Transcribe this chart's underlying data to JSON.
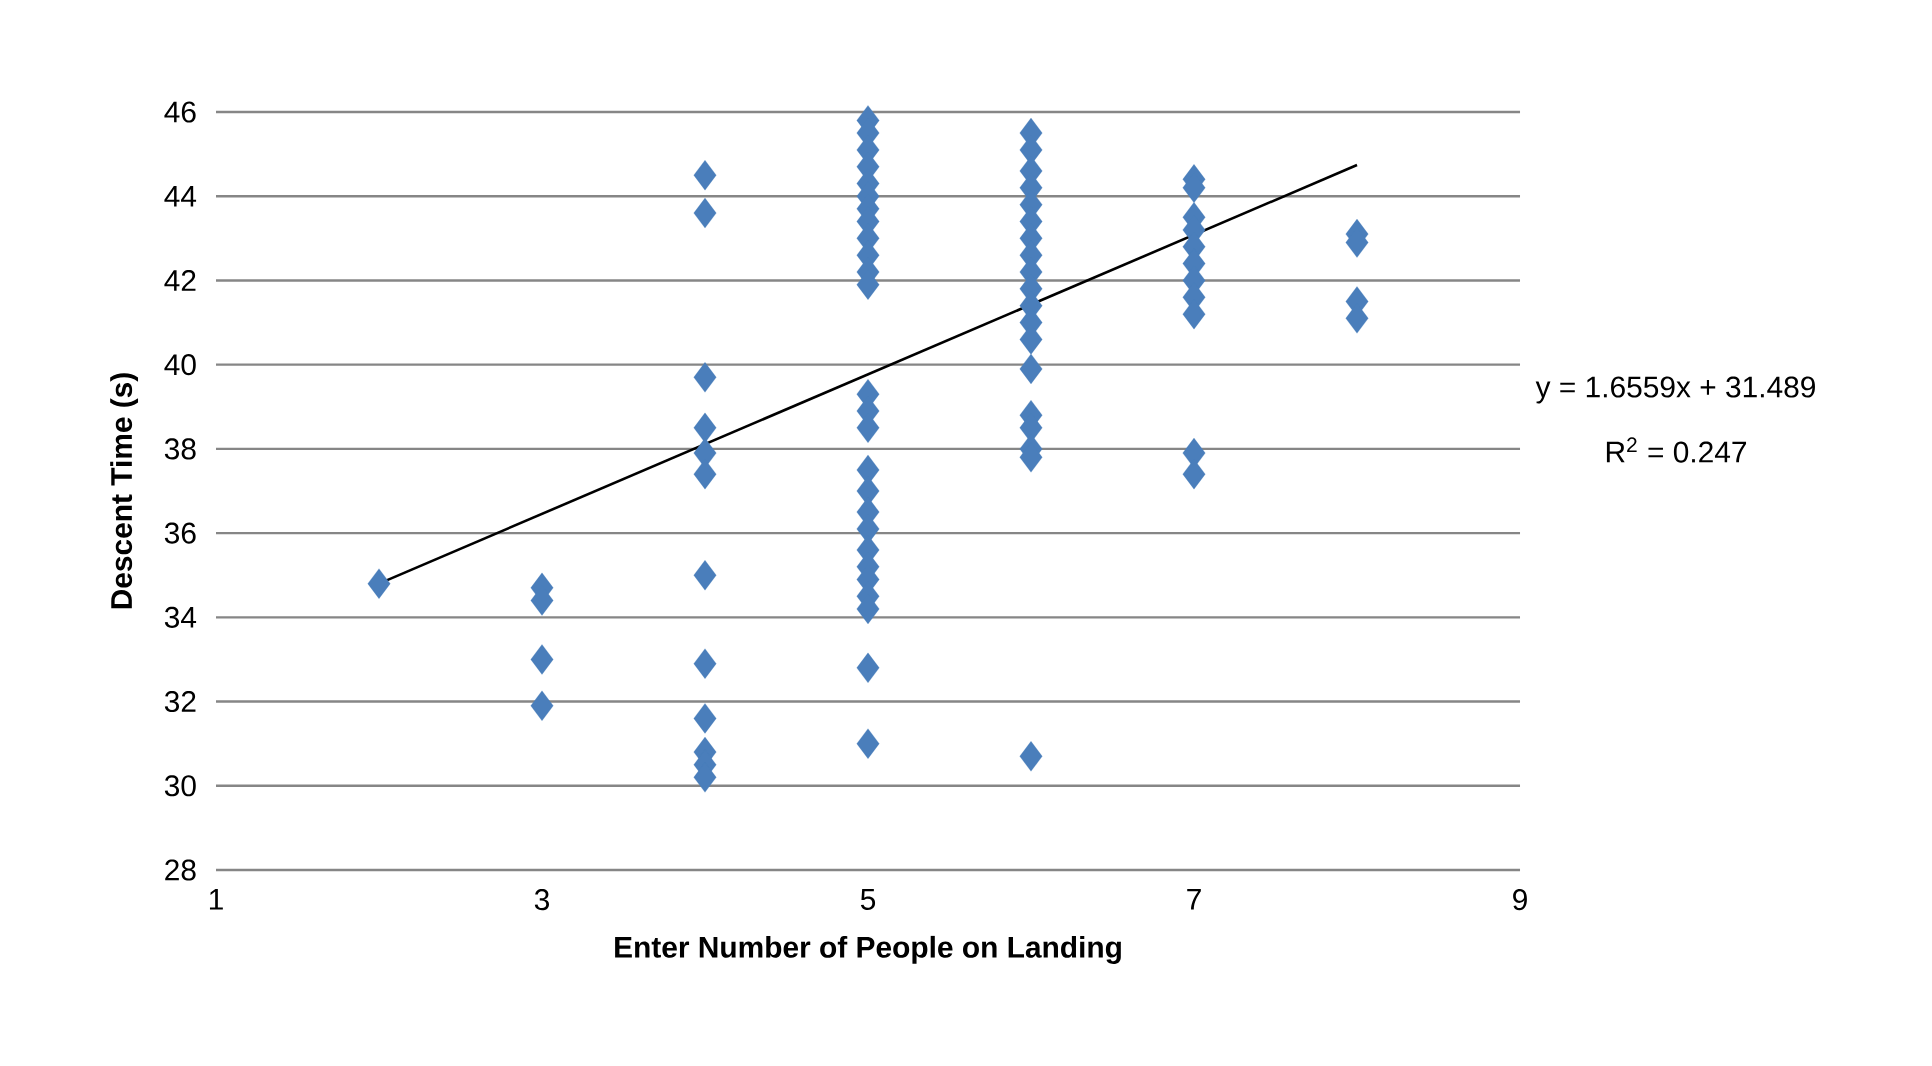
{
  "chart_data": {
    "type": "scatter",
    "xlabel": "Enter Number of People on Landing",
    "ylabel": "Descent Time (s)",
    "xlim": [
      1,
      9
    ],
    "ylim": [
      28,
      46
    ],
    "xticks": [
      1,
      3,
      5,
      7,
      9
    ],
    "yticks": [
      28,
      30,
      32,
      34,
      36,
      38,
      40,
      42,
      44,
      46
    ],
    "grid": "y",
    "series": [
      {
        "color": "#4a7ebb",
        "marker": "diamond",
        "x": [
          2,
          3,
          3,
          3,
          3,
          4,
          4,
          4,
          4,
          4,
          4,
          4,
          4,
          4,
          4,
          4,
          4,
          5,
          5,
          5,
          5,
          5,
          5,
          5,
          5,
          5,
          5,
          5,
          5,
          5,
          5,
          5,
          5,
          5,
          5,
          5,
          5,
          5,
          5,
          5,
          5,
          5,
          5,
          6,
          6,
          6,
          6,
          6,
          6,
          6,
          6,
          6,
          6,
          6,
          6,
          6,
          6,
          6,
          6,
          6,
          6,
          6,
          7,
          7,
          7,
          7,
          7,
          7,
          7,
          7,
          7,
          7,
          7,
          8,
          8,
          8,
          8
        ],
        "values": [
          34.8,
          34.7,
          34.4,
          33.0,
          31.9,
          44.5,
          43.6,
          39.7,
          38.5,
          37.9,
          37.4,
          35.0,
          32.9,
          31.6,
          30.8,
          30.5,
          30.2,
          45.8,
          45.5,
          45.1,
          44.7,
          44.3,
          44.0,
          43.7,
          43.4,
          43.0,
          42.6,
          42.2,
          41.9,
          39.3,
          38.9,
          38.5,
          37.5,
          37.0,
          36.5,
          36.1,
          35.6,
          35.2,
          34.9,
          34.5,
          34.2,
          32.8,
          31.0,
          45.5,
          45.1,
          44.6,
          44.2,
          43.8,
          43.4,
          43.0,
          42.6,
          42.2,
          41.8,
          41.4,
          41.0,
          40.6,
          39.9,
          38.8,
          38.5,
          38.0,
          37.8,
          30.7,
          44.4,
          44.2,
          43.5,
          43.2,
          42.8,
          42.4,
          42.0,
          41.6,
          41.2,
          37.9,
          37.4,
          43.1,
          42.9,
          41.5,
          41.1
        ]
      },
      {
        "type": "line",
        "color": "#000000",
        "marker": "none",
        "x": [
          2,
          8
        ],
        "values": [
          34.8,
          44.74
        ]
      }
    ],
    "annotations": [
      "y = 1.6559x + 31.489",
      "R$^{2}$ = 0.247"
    ]
  }
}
